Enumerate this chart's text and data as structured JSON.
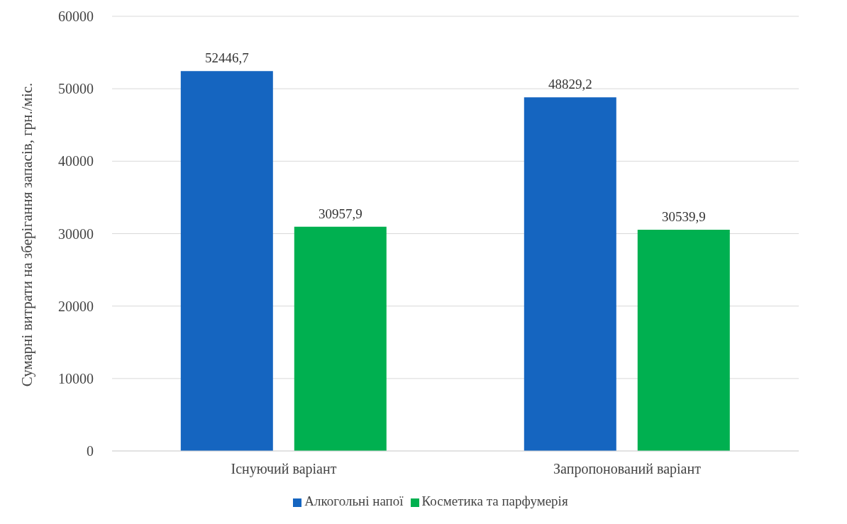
{
  "chart_data": {
    "type": "bar",
    "ylabel": "Сумарні витрати на зберігання запасів, грн./міс.",
    "categories": [
      "Існуючий варіант",
      "Запропонований варіант"
    ],
    "series": [
      {
        "name": "Алкогольні напої",
        "color": "#1565c0",
        "values": [
          52446.7,
          48829.2
        ],
        "value_labels": [
          "52446,7",
          "48829,2"
        ]
      },
      {
        "name": "Косметика та парфумерія",
        "color": "#00b050",
        "values": [
          30957.9,
          30539.9
        ],
        "value_labels": [
          "30957,9",
          "30539,9"
        ]
      }
    ],
    "ylim": [
      0,
      60000
    ],
    "yticks": [
      0,
      10000,
      20000,
      30000,
      40000,
      50000,
      60000
    ],
    "grid": "y",
    "legend": "bottom"
  }
}
